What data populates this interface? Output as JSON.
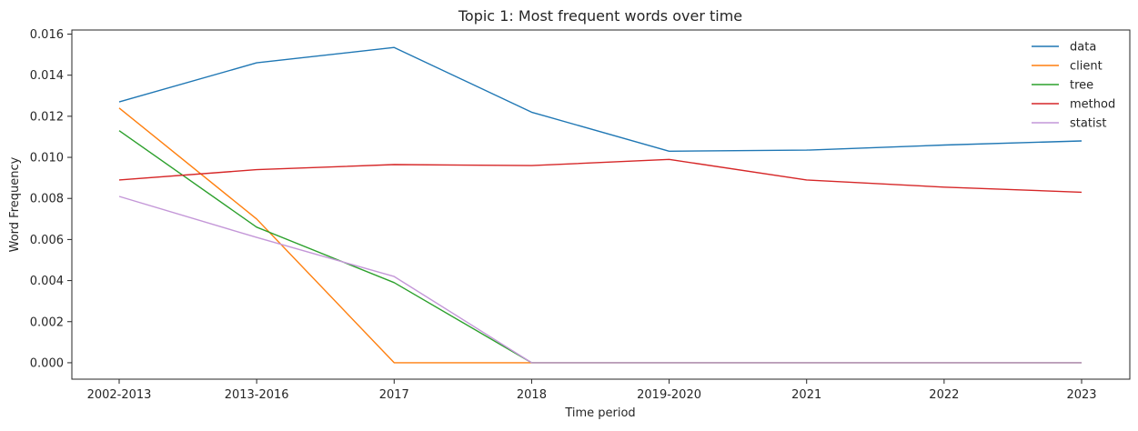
{
  "chart_data": {
    "type": "line",
    "title": "Topic 1: Most frequent words over time",
    "xlabel": "Time period",
    "ylabel": "Word Frequency",
    "categories": [
      "2002-2013",
      "2013-2016",
      "2017",
      "2018",
      "2019-2020",
      "2021",
      "2022",
      "2023"
    ],
    "ylim": [
      -0.0008,
      0.0162
    ],
    "yticks": [
      "0.000",
      "0.002",
      "0.004",
      "0.006",
      "0.008",
      "0.010",
      "0.012",
      "0.014",
      "0.016"
    ],
    "grid": false,
    "legend_position": "top-right",
    "series": [
      {
        "name": "data",
        "color": "#1f77b4",
        "values": [
          0.0127,
          0.0146,
          0.01535,
          0.0122,
          0.0103,
          0.01035,
          0.0106,
          0.0108
        ]
      },
      {
        "name": "client",
        "color": "#ff7f0e",
        "values": [
          0.0124,
          0.007,
          0.0,
          0.0,
          0.0,
          0.0,
          0.0,
          0.0
        ]
      },
      {
        "name": "tree",
        "color": "#2ca02c",
        "values": [
          0.0113,
          0.0066,
          0.0039,
          0.0,
          0.0,
          0.0,
          0.0,
          0.0
        ]
      },
      {
        "name": "method",
        "color": "#d62728",
        "values": [
          0.0089,
          0.0094,
          0.00965,
          0.0096,
          0.0099,
          0.0089,
          0.00855,
          0.0083
        ]
      },
      {
        "name": "statist",
        "color": "#c497d8",
        "values": [
          0.0081,
          0.0061,
          0.0042,
          0.0,
          0.0,
          0.0,
          0.0,
          0.0
        ]
      }
    ]
  }
}
